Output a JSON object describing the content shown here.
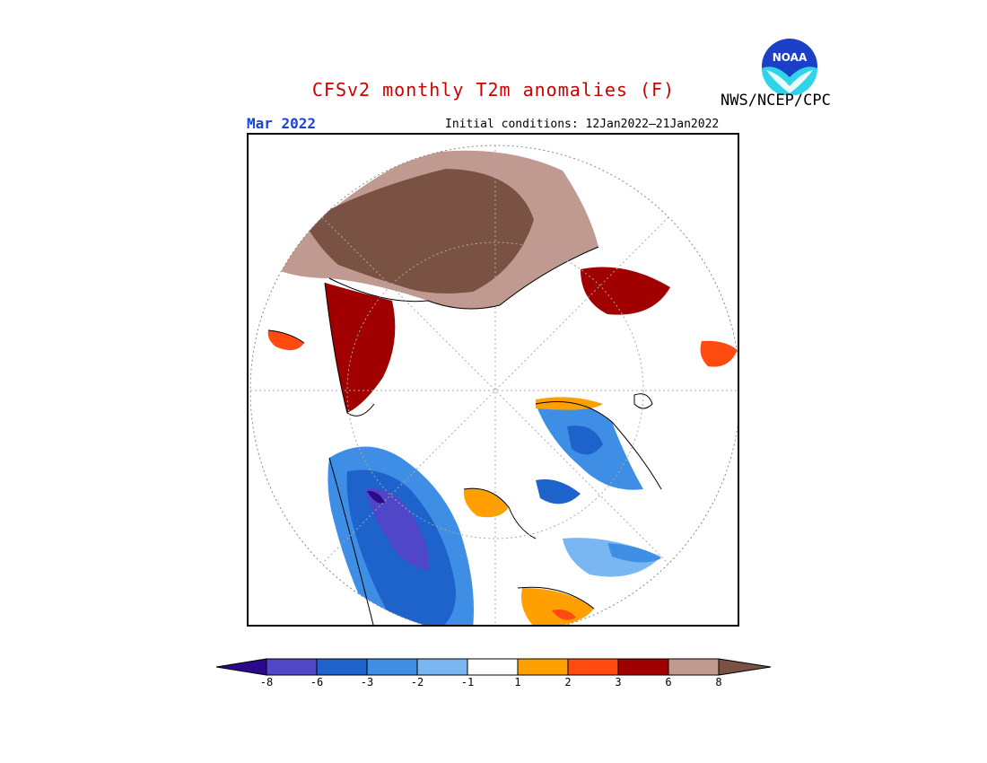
{
  "title": "CFSv2 monthly T2m anomalies (F)",
  "agency": "NWS/NCEP/CPC",
  "logo": {
    "text": "NOAA",
    "icon": "noaa-logo"
  },
  "target_month": "Mar 2022",
  "initial_conditions": "Initial conditions: 12Jan2022–21Jan2022",
  "colors": {
    "lt_m8": "#2a0a8a",
    "m8_m6": "#5046c8",
    "m6_m3": "#1e62cc",
    "m3_m2": "#3e8ee6",
    "m2_m1": "#7ab6f2",
    "m1_1": "#ffffff",
    "p1_p2": "#ffa000",
    "p2_p3": "#ff4a10",
    "p3_p6": "#a00000",
    "p6_p8": "#c09a90",
    "gt_p8": "#7a5244"
  },
  "colorbar": {
    "levels": [
      "-8",
      "-6",
      "-3",
      "-2",
      "-1",
      "1",
      "2",
      "3",
      "6",
      "8"
    ]
  }
}
